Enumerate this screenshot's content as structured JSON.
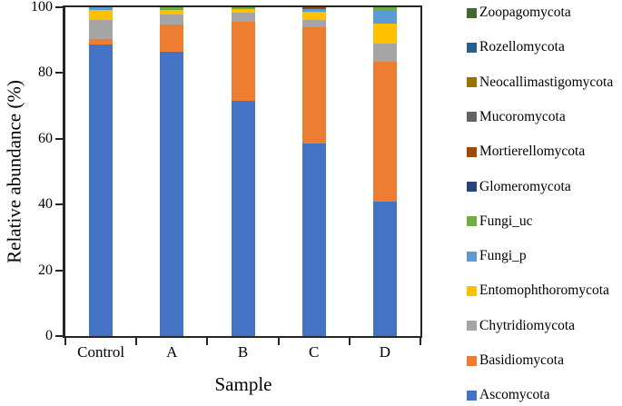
{
  "colors": {
    "axis": "#262626",
    "text": "#000000",
    "background": "#ffffff"
  },
  "chart_data": {
    "type": "bar",
    "stacked": true,
    "title": "",
    "xlabel": "Sample",
    "ylabel": "Relative abundance (%)",
    "ylim": [
      0,
      100
    ],
    "yticks": [
      0,
      20,
      40,
      60,
      80,
      100
    ],
    "grid": false,
    "legend_position": "right",
    "categories": [
      "Control",
      "A",
      "B",
      "C",
      "D"
    ],
    "series": [
      {
        "name": "Ascomycota",
        "color": "#4472C4",
        "values": [
          88.8,
          86.5,
          71.5,
          58.5,
          41.0
        ]
      },
      {
        "name": "Basidiomycota",
        "color": "#ED7D31",
        "values": [
          1.4,
          8.3,
          24.0,
          35.3,
          42.4
        ]
      },
      {
        "name": "Chytridiomycota",
        "color": "#A5A5A5",
        "values": [
          6.0,
          3.0,
          2.8,
          2.3,
          5.5
        ]
      },
      {
        "name": "Entomophthoromycota",
        "color": "#FFC000",
        "values": [
          3.0,
          1.5,
          1.2,
          2.4,
          6.2
        ]
      },
      {
        "name": "Fungi_p",
        "color": "#5B9BD5",
        "values": [
          0.8,
          0,
          0,
          1.0,
          4.2
        ]
      },
      {
        "name": "Fungi_uc",
        "color": "#70AD47",
        "values": [
          0,
          0.7,
          0.5,
          0,
          0.7
        ]
      },
      {
        "name": "Glomeromycota",
        "color": "#264478",
        "values": [
          0,
          0,
          0,
          0,
          0
        ]
      },
      {
        "name": "Mortierellomycota",
        "color": "#9E480E",
        "values": [
          0,
          0,
          0,
          0.5,
          0
        ]
      },
      {
        "name": "Mucoromycota",
        "color": "#636363",
        "values": [
          0,
          0,
          0,
          0,
          0
        ]
      },
      {
        "name": "Neocallimastigomycota",
        "color": "#997300",
        "values": [
          0,
          0,
          0,
          0,
          0
        ]
      },
      {
        "name": "Rozellomycota",
        "color": "#255E91",
        "values": [
          0,
          0,
          0,
          0,
          0
        ]
      },
      {
        "name": "Zoopagomycota",
        "color": "#43682B",
        "values": [
          0,
          0,
          0,
          0,
          0
        ]
      }
    ],
    "legend_order_top_to_bottom": [
      "Zoopagomycota",
      "Rozellomycota",
      "Neocallimastigomycota",
      "Mucoromycota",
      "Mortierellomycota",
      "Glomeromycota",
      "Fungi_uc",
      "Fungi_p",
      "Entomophthoromycota",
      "Chytridiomycota",
      "Basidiomycota",
      "Ascomycota"
    ]
  }
}
